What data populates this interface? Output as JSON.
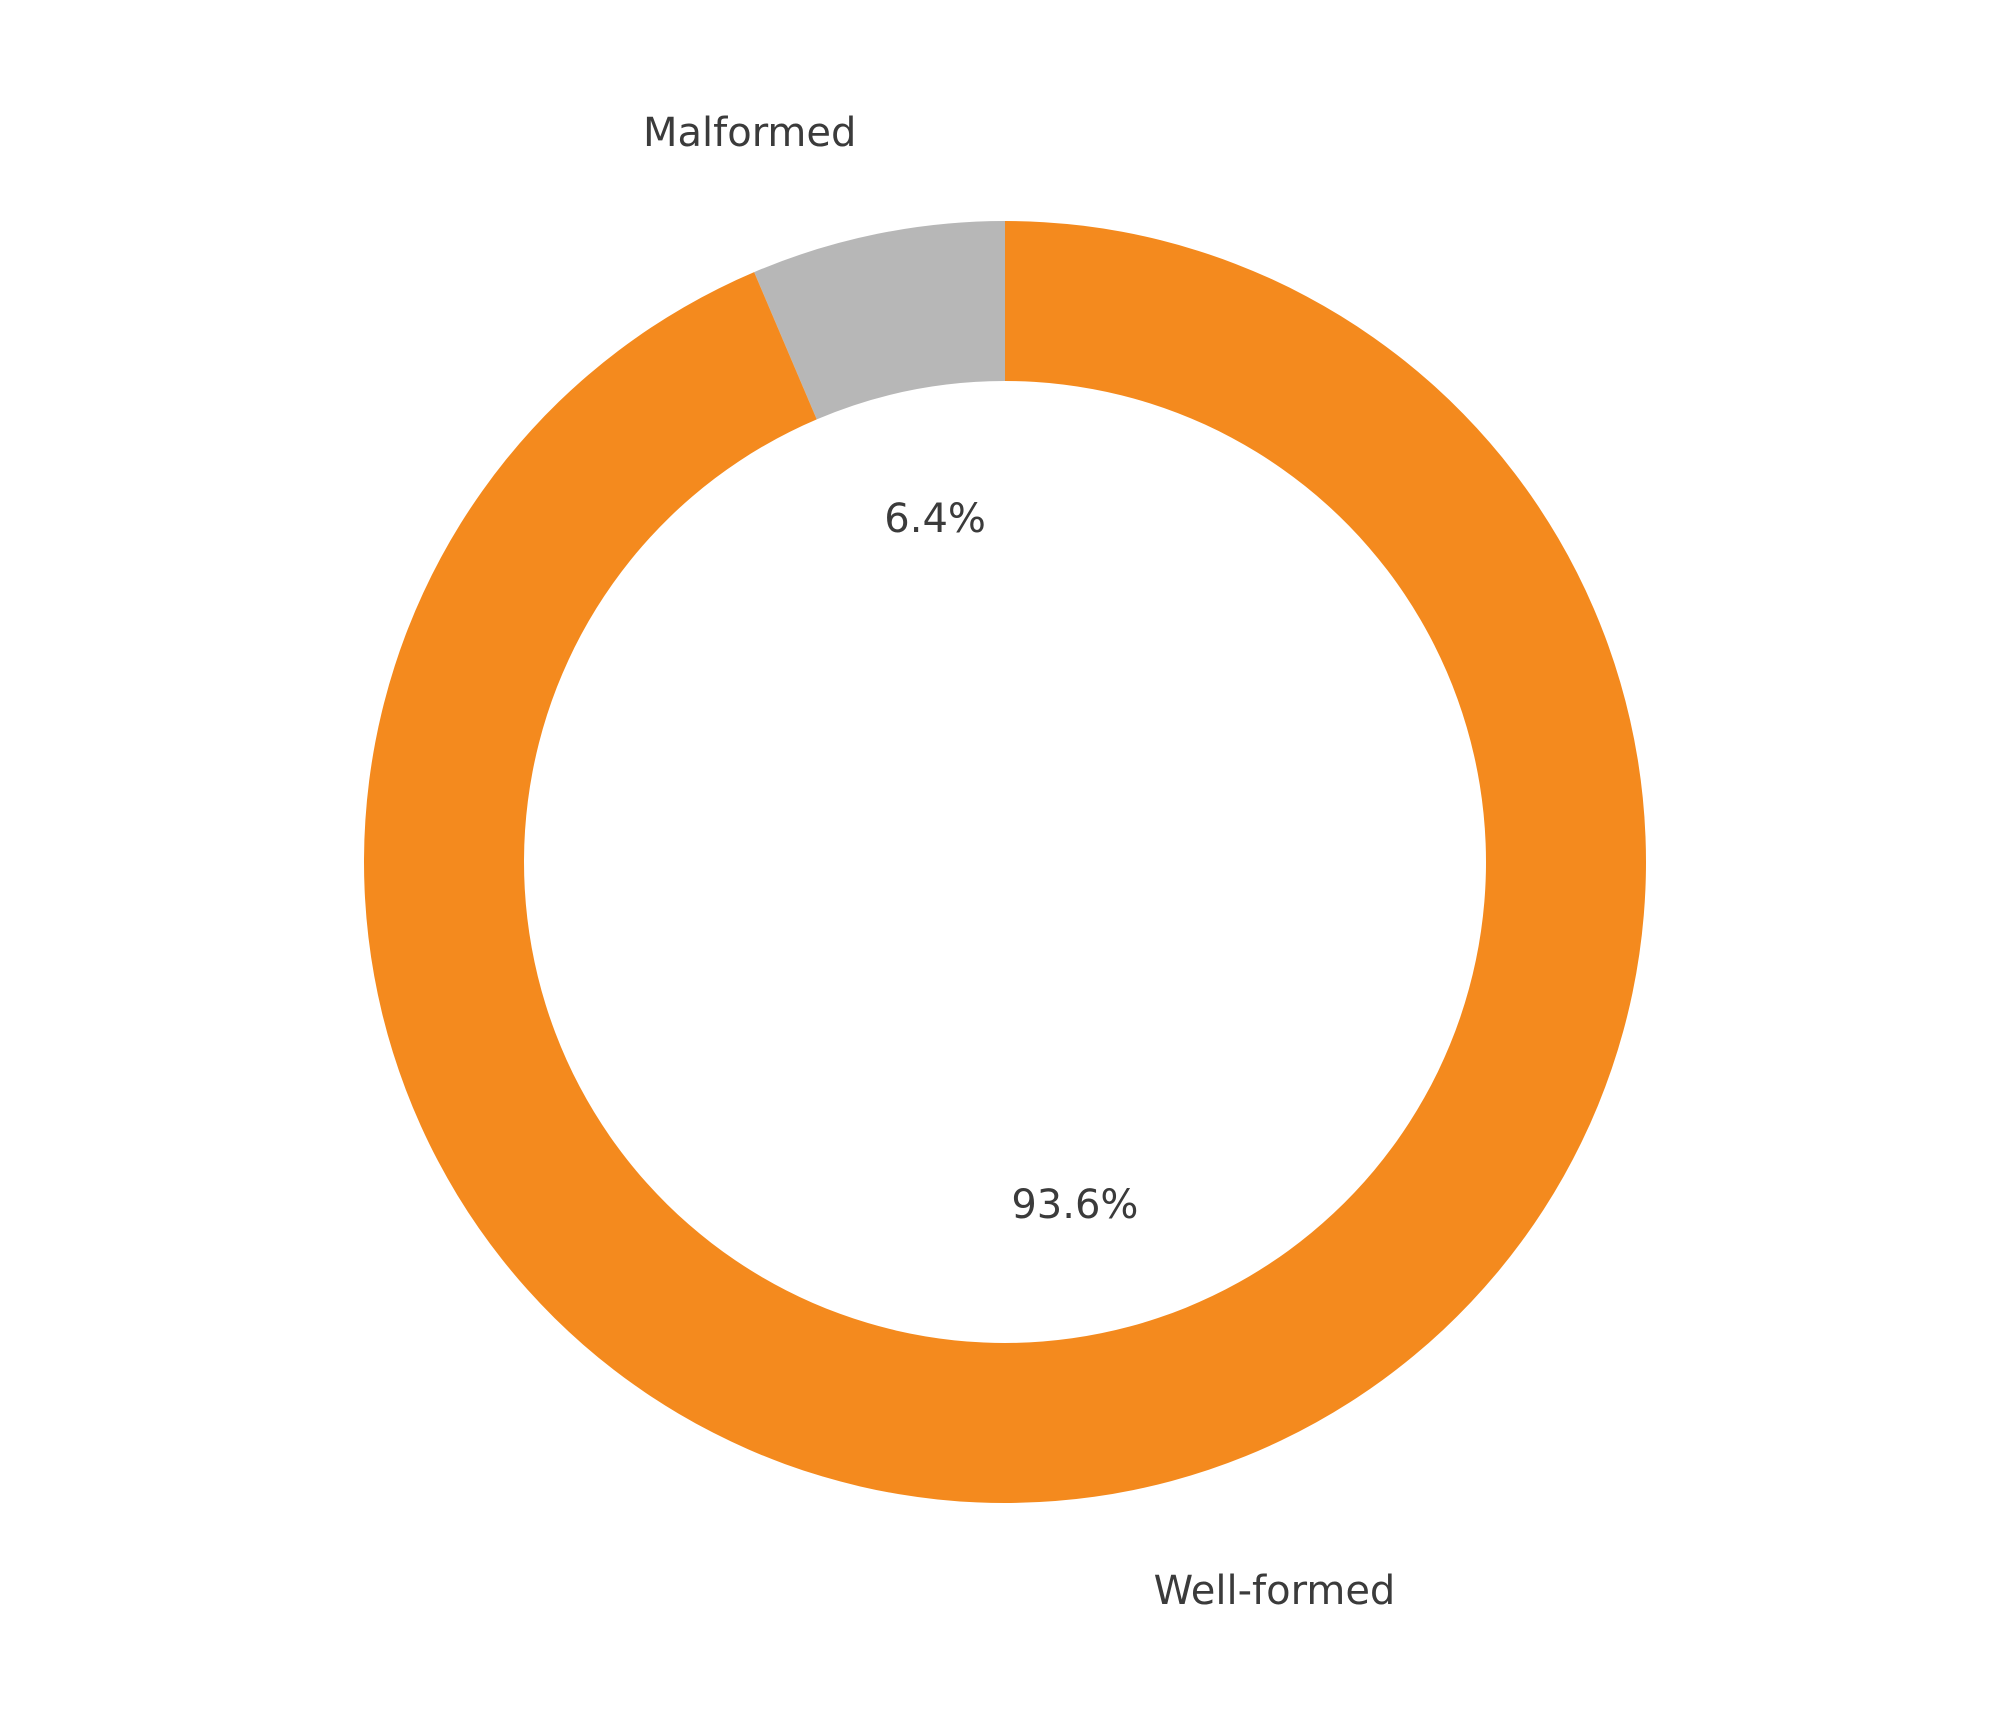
{
  "chart_data": {
    "type": "pie",
    "variant": "donut",
    "title": "",
    "start": "top",
    "direction": "counterclockwise",
    "slices": [
      {
        "label": "Malformed",
        "value": 6.4,
        "value_label": "6.4%",
        "color": "#b7b7b7"
      },
      {
        "label": "Well-formed",
        "value": 93.6,
        "value_label": "93.6%",
        "color": "#f48a1e"
      }
    ]
  }
}
